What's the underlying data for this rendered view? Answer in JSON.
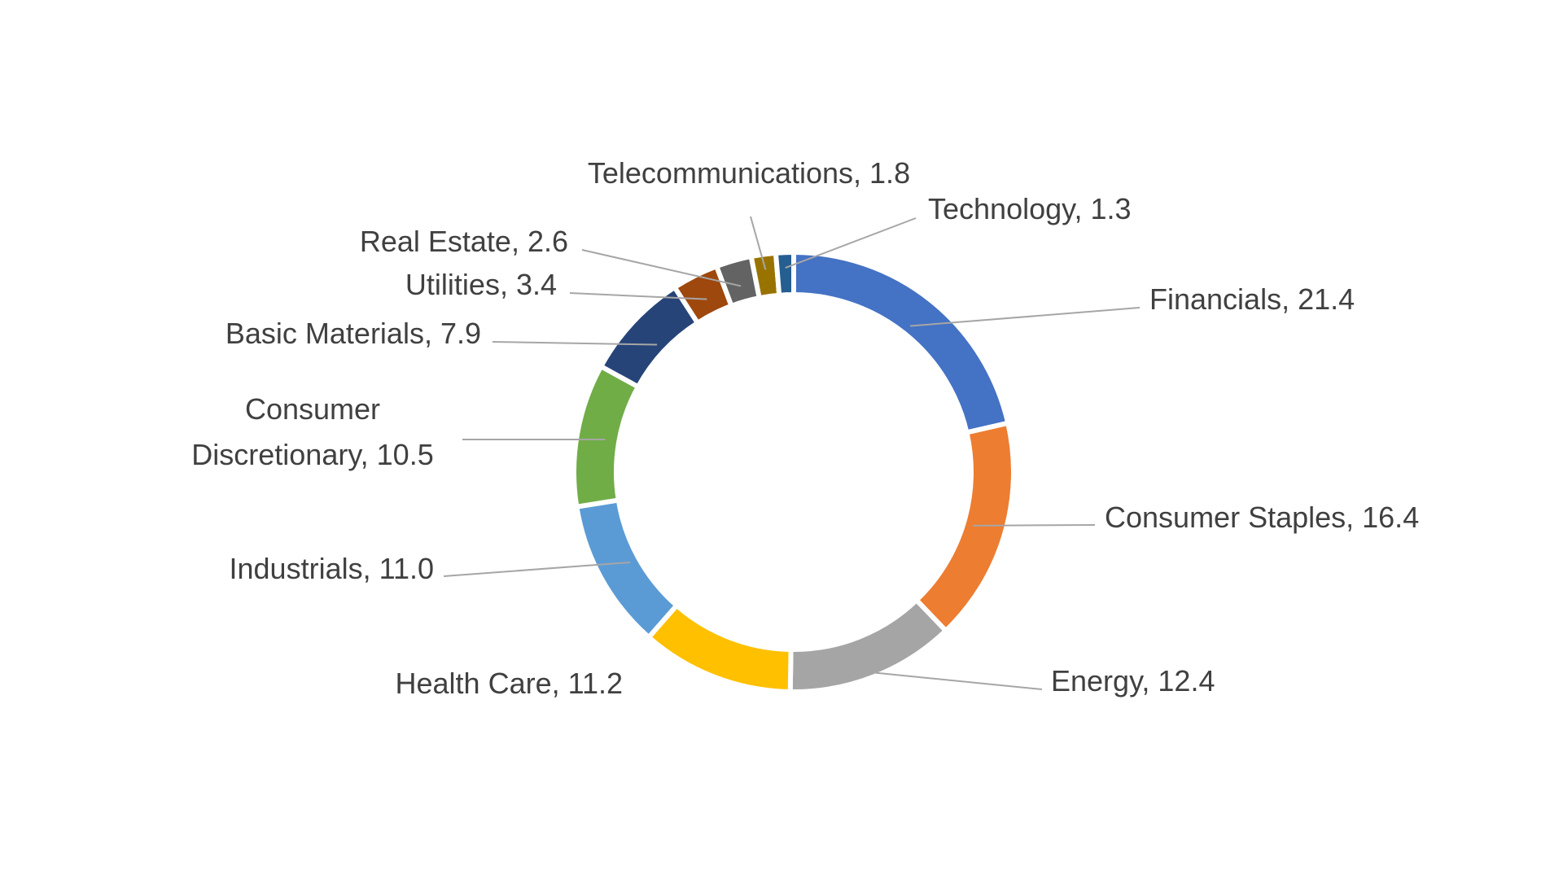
{
  "chart_data": {
    "type": "pie",
    "variant": "donut",
    "title": "",
    "categories": [
      "Financials",
      "Consumer Staples",
      "Energy",
      "Health Care",
      "Industrials",
      "Consumer Discretionary",
      "Basic Materials",
      "Utilities",
      "Real Estate",
      "Telecommunications",
      "Technology"
    ],
    "values": [
      21.4,
      16.4,
      12.4,
      11.2,
      11.0,
      10.5,
      7.9,
      3.4,
      2.6,
      1.8,
      1.3
    ],
    "data_labels": [
      "Financials, 21.4",
      "Consumer Staples, 16.4",
      "Energy, 12.4",
      "Health Care, 11.2",
      "Industrials, 11.0",
      "Consumer Discretionary, 10.5",
      "Basic Materials, 7.9",
      "Utilities, 3.4",
      "Real Estate, 2.6",
      "Telecommunications, 1.8",
      "Technology, 1.3"
    ],
    "colors": [
      "#4472c4",
      "#ed7d31",
      "#a5a5a5",
      "#ffc000",
      "#5b9bd5",
      "#70ad47",
      "#264478",
      "#9e480e",
      "#636363",
      "#997300",
      "#255e91"
    ],
    "legend": "none"
  }
}
